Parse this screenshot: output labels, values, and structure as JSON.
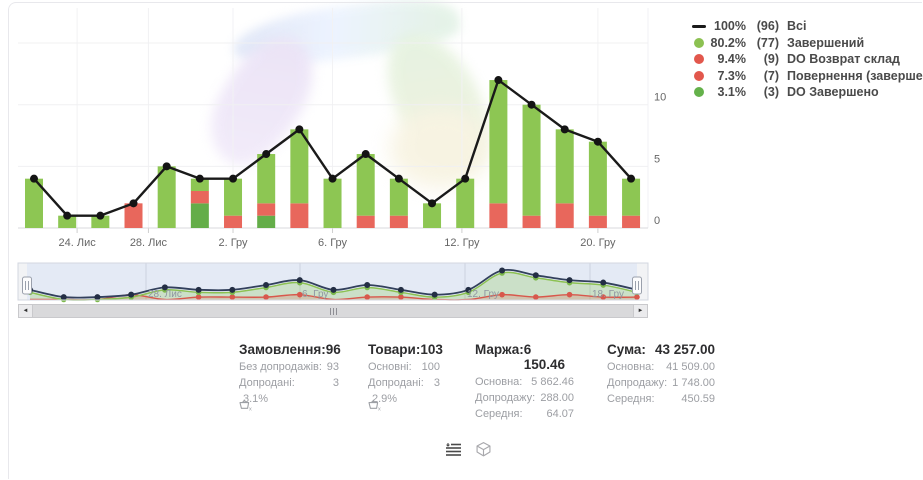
{
  "legend": {
    "items": [
      {
        "swatch": "line",
        "color": "#1a1a1a",
        "percent": "100%",
        "count": "(96)",
        "label": "Всі"
      },
      {
        "swatch": "dot",
        "color": "#8cc152",
        "percent": "80.2%",
        "count": "(77)",
        "label": "Завершений"
      },
      {
        "swatch": "dot",
        "color": "#e2574c",
        "percent": "9.4%",
        "count": "(9)",
        "label": "DO Возврат склад"
      },
      {
        "swatch": "dot",
        "color": "#e2574c",
        "percent": "7.3%",
        "count": "(7)",
        "label": "Повернення (завершений)"
      },
      {
        "swatch": "dot",
        "color": "#64b14a",
        "percent": "3.1%",
        "count": "(3)",
        "label": "DO Завершено"
      }
    ]
  },
  "chart_data": {
    "type": "bar",
    "subtype": "stacked-columns-with-total-line",
    "n": 19,
    "title": "",
    "xlabel": "",
    "ylabel": "",
    "ylim": [
      0,
      17.8
    ],
    "y_ticks": [
      0,
      5,
      10
    ],
    "y_grid": [
      0,
      5,
      10,
      15
    ],
    "x_tick_labels": [
      "24. Лис",
      "28. Лис",
      "2. Гру",
      "6. Гру",
      "12. Гру",
      "20. Гру"
    ],
    "x_tick_positions": [
      1.3,
      3.45,
      6,
      9,
      12.9,
      17
    ],
    "line": {
      "name": "Всі",
      "color": "#1a1a1a",
      "total": 96,
      "values": [
        4,
        1,
        1,
        2,
        5,
        4,
        4,
        6,
        8,
        4,
        6,
        4,
        2,
        4,
        12,
        10,
        8,
        7,
        4
      ]
    },
    "stacks": [
      {
        "name": "DO Завершено",
        "color": "#64ad49",
        "total": 3,
        "values": [
          0,
          0,
          0,
          0,
          0,
          2,
          0,
          1,
          0,
          0,
          0,
          0,
          0,
          0,
          0,
          0,
          0,
          0,
          0
        ]
      },
      {
        "name": "DO Возврат склад + Повернення (завершений)",
        "color": "#e8675c",
        "total": 16,
        "values": [
          0,
          0,
          0,
          2,
          0,
          1,
          1,
          1,
          2,
          0,
          1,
          1,
          0,
          0,
          2,
          1,
          2,
          1,
          1
        ]
      },
      {
        "name": "Завершений",
        "color": "#8dc653",
        "total": 77,
        "values": [
          4,
          1,
          1,
          0,
          5,
          1,
          3,
          4,
          6,
          4,
          5,
          3,
          2,
          4,
          10,
          9,
          6,
          6,
          3
        ]
      }
    ]
  },
  "navigator": {
    "labels": [
      {
        "text": "28. Лис",
        "x": 148
      },
      {
        "text": "6. Гру",
        "x": 302
      },
      {
        "text": "12. Гру",
        "x": 467
      },
      {
        "text": "18. Гру",
        "x": 592
      }
    ],
    "gridlines": [
      146,
      300,
      465,
      590
    ],
    "colors": {
      "selection": "#e4eaf5",
      "navy": "#32405c",
      "green": "#8cc152",
      "red": "#d8584c"
    }
  },
  "scrollbar": {
    "left_arrow": "◄",
    "right_arrow": "►"
  },
  "footer": {
    "columns": [
      {
        "title": "Замовлення:",
        "value": "96",
        "rows": [
          {
            "label": "Без допродажів:",
            "value": "93"
          },
          {
            "label": "Допродані:",
            "value": "3"
          }
        ],
        "basket_percent": "3.1%"
      },
      {
        "title": "Товари:",
        "value": "103",
        "rows": [
          {
            "label": "Основні:",
            "value": "100"
          },
          {
            "label": "Допродані:",
            "value": "3"
          }
        ],
        "basket_percent": "2.9%"
      },
      {
        "title": "Маржа:",
        "value": "6 150.46",
        "rows": [
          {
            "label": "Основна:",
            "value": "5 862.46"
          },
          {
            "label": "Допродажу:",
            "value": "288.00"
          },
          {
            "label": "Середня:",
            "value": "64.07"
          }
        ]
      },
      {
        "title": "Сума:",
        "value": "43 257.00",
        "rows": [
          {
            "label": "Основна:",
            "value": "41 509.00"
          },
          {
            "label": "Допродажу:",
            "value": "1 748.00"
          },
          {
            "label": "Середня:",
            "value": "450.59"
          }
        ]
      }
    ]
  },
  "icons": {
    "basket": "basket-x-icon",
    "list": "series-list-icon",
    "cube": "package-cube-icon"
  }
}
